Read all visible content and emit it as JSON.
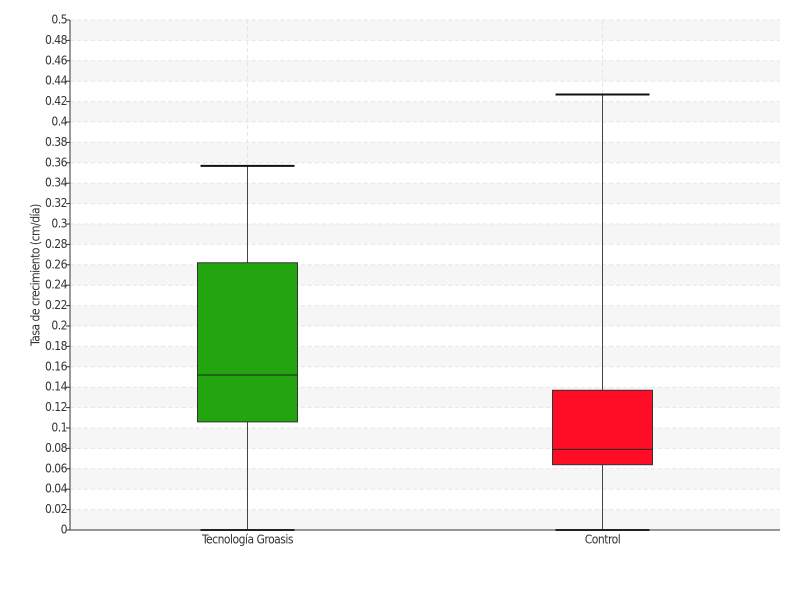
{
  "chart_data": {
    "type": "box",
    "y_label": "Tasa de crecimiento (cm/día)",
    "ylim": [
      0,
      0.5
    ],
    "yticks": [
      0,
      0.02,
      0.04,
      0.06,
      0.08,
      0.1,
      0.12,
      0.14,
      0.16,
      0.18,
      0.2,
      0.22,
      0.24,
      0.26,
      0.28,
      0.3,
      0.32,
      0.34,
      0.36,
      0.38,
      0.4,
      0.42,
      0.44,
      0.46,
      0.48,
      0.5
    ],
    "grid": true,
    "boxes": [
      {
        "category": "Tecnología Groasis",
        "color": "#22a50e",
        "min": 0,
        "q1": 0.106,
        "median": 0.152,
        "q3": 0.262,
        "max": 0.357
      },
      {
        "category": "Control",
        "color": "#ff0d26",
        "min": 0,
        "q1": 0.064,
        "median": 0.079,
        "q3": 0.137,
        "max": 0.427
      }
    ]
  }
}
